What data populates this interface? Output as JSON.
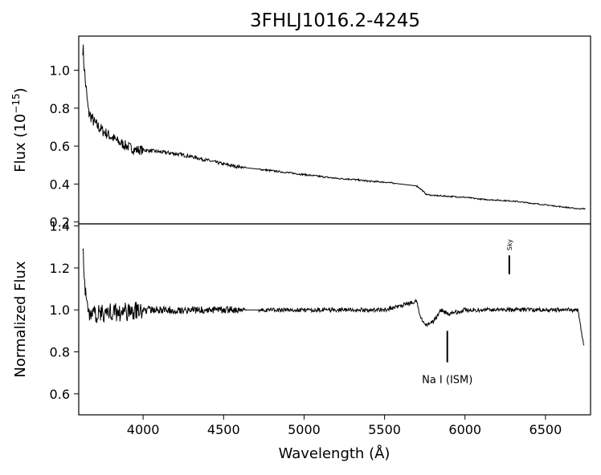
{
  "chart_data": {
    "title": "3FHLJ1016.2-4245",
    "xlabel": "Wavelength (Å)",
    "xlim": [
      3600,
      6780
    ],
    "xticks": [
      4000,
      4500,
      5000,
      5500,
      6000,
      6500
    ],
    "panels": [
      {
        "type": "line",
        "ylabel_main": "Flux (10",
        "ylabel_exp": "−15",
        "ylabel_close": ")",
        "ylim": [
          0.19,
          1.18
        ],
        "yticks": [
          0.2,
          0.4,
          0.6,
          0.8,
          1.0
        ],
        "ytick_labels": [
          "0.2",
          "0.4",
          "0.6",
          "0.8",
          "1.0"
        ],
        "series": [
          {
            "x": [
              3625,
              3640,
              3660,
              3700,
              3750,
              3800,
              3850,
              3900,
              3950,
              4000,
              4100,
              4200,
              4300,
              4400,
              4500,
              4600,
              4700,
              4800,
              4900,
              5000,
              5100,
              5200,
              5300,
              5400,
              5500,
              5600,
              5700,
              5730,
              5760,
              5800,
              5900,
              6000,
              6100,
              6200,
              6300,
              6400,
              6500,
              6600,
              6700,
              6750
            ],
            "y": [
              1.13,
              0.95,
              0.78,
              0.72,
              0.68,
              0.65,
              0.62,
              0.6,
              0.58,
              0.58,
              0.57,
              0.56,
              0.545,
              0.525,
              0.505,
              0.49,
              0.48,
              0.47,
              0.46,
              0.45,
              0.44,
              0.43,
              0.425,
              0.415,
              0.41,
              0.4,
              0.39,
              0.37,
              0.345,
              0.34,
              0.335,
              0.33,
              0.32,
              0.315,
              0.31,
              0.3,
              0.29,
              0.28,
              0.27,
              0.27
            ]
          }
        ]
      },
      {
        "type": "line",
        "ylabel": "Normalized Flux",
        "ylim": [
          0.5,
          1.41
        ],
        "yticks": [
          0.6,
          0.8,
          1.0,
          1.2,
          1.4
        ],
        "ytick_labels": [
          "0.6",
          "0.8",
          "1.0",
          "1.2",
          "1.4"
        ],
        "series": [
          {
            "x": [
              3625,
              3640,
              3660,
              3700,
              3800,
              3900,
              4000,
              4200,
              4400,
              4600,
              4700,
              4800,
              5000,
              5200,
              5400,
              5500,
              5600,
              5700,
              5720,
              5750,
              5800,
              5850,
              5900,
              6000,
              6100,
              6200,
              6300,
              6400,
              6500,
              6600,
              6700,
              6740
            ],
            "y": [
              1.33,
              1.08,
              0.99,
              0.98,
              0.99,
              0.99,
              1.0,
              1.0,
              1.0,
              1.0,
              1.0,
              1.0,
              1.0,
              1.0,
              1.0,
              1.0,
              1.02,
              1.04,
              0.97,
              0.93,
              0.94,
              1.0,
              0.98,
              1.0,
              1.0,
              1.0,
              1.0,
              1.0,
              1.0,
              1.0,
              1.0,
              0.82
            ]
          }
        ],
        "annotations": [
          {
            "text": "Na I (ISM)",
            "x": 5890,
            "y1": 0.9,
            "y2": 0.75
          },
          {
            "text": "Sky",
            "x": 6275,
            "y1": 1.26,
            "y2": 1.17
          }
        ]
      }
    ]
  }
}
